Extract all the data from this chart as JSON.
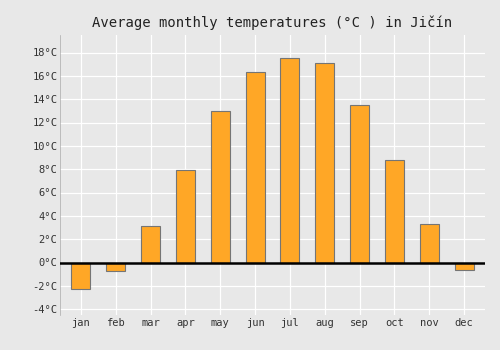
{
  "title": "Average monthly temperatures (°C ) in Jičín",
  "months": [
    "Jan",
    "Feb",
    "Mar",
    "Apr",
    "May",
    "Jun",
    "Jul",
    "Aug",
    "Sep",
    "Oct",
    "Nov",
    "Dec"
  ],
  "temperatures": [
    -2.3,
    -0.7,
    3.1,
    7.9,
    13.0,
    16.3,
    17.5,
    17.1,
    13.5,
    8.8,
    3.3,
    -0.6
  ],
  "bar_color": "#FFA726",
  "bar_edge_color": "#757575",
  "ylim": [
    -4.5,
    19.5
  ],
  "yticks": [
    -4,
    -2,
    0,
    2,
    4,
    6,
    8,
    10,
    12,
    14,
    16,
    18
  ],
  "ytick_labels": [
    "-4°C",
    "-2°C",
    "0°C",
    "2°C",
    "4°C",
    "6°C",
    "8°C",
    "10°C",
    "12°C",
    "14°C",
    "16°C",
    "18°C"
  ],
  "plot_bg_color": "#e8e8e8",
  "fig_bg_color": "#e8e8e8",
  "grid_color": "#ffffff",
  "zero_line_color": "#000000",
  "title_fontsize": 10,
  "tick_fontsize": 7.5,
  "bar_width": 0.55
}
